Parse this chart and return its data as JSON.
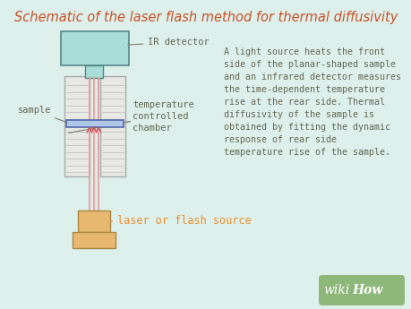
{
  "title": "Schematic of the laser flash method for thermal diffusivity",
  "title_color": "#c8522a",
  "bg_color": "#ddf0eb",
  "label_color": "#666655",
  "annotation_color": "#666655",
  "annotation_line_color": "#888877",
  "description_text": "A light source heats the front\nside of the planar-shaped sample\nand an infrared detector measures\nthe time-dependent temperature\nrise at the rear side. Thermal\ndiffusivity of the sample is\nobtained by fitting the dynamic\nresponse of rear side\ntemperature rise of the sample.",
  "ir_detector_color": "#a8ddd8",
  "ir_detector_border": "#558888",
  "chamber_color": "#e8e8e4",
  "chamber_line_color": "#c8c8c4",
  "chamber_border": "#aaaaaa",
  "sample_color": "#b0c8e8",
  "sample_border": "#5566aa",
  "laser_color": "#e8b870",
  "laser_border": "#aa8844",
  "laser_label_color": "#e89030",
  "beam_color": "#e8a0a0",
  "arrow_color": "#cc5555",
  "wikihow_bg": "#8db87a",
  "wikihow_italic": "wiki",
  "wikihow_bold": "How",
  "title_fontsize": 10.5,
  "desc_fontsize": 7.2,
  "label_fontsize": 7.5,
  "laser_label_fontsize": 8.5
}
